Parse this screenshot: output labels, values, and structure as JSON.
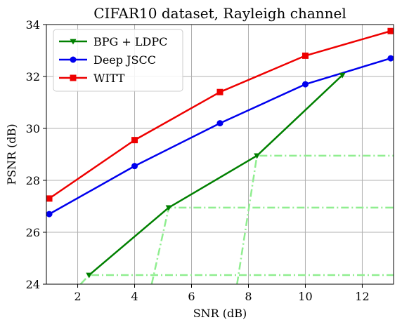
{
  "chart_data": {
    "type": "line",
    "title": "CIFAR10 dataset, Rayleigh channel",
    "xlabel": "SNR (dB)",
    "ylabel": "PSNR (dB)",
    "xlim": [
      0.9,
      13.1
    ],
    "ylim": [
      24,
      34
    ],
    "xticks": [
      2,
      4,
      6,
      8,
      10,
      12
    ],
    "yticks": [
      24,
      26,
      28,
      30,
      32,
      34
    ],
    "grid": true,
    "legend_position": "upper-left",
    "series": [
      {
        "name": "BPG + LDPC",
        "color": "#008000",
        "marker": "triangle-down",
        "x": [
          2.4,
          5.2,
          8.3,
          11.3
        ],
        "y": [
          24.35,
          26.95,
          28.95,
          32.05
        ]
      },
      {
        "name": "Deep JSCC",
        "color": "#0000ee",
        "marker": "circle",
        "x": [
          1,
          4,
          7,
          10,
          13
        ],
        "y": [
          26.7,
          28.55,
          30.2,
          31.7,
          32.7
        ]
      },
      {
        "name": "WITT",
        "color": "#ee0000",
        "marker": "square",
        "x": [
          1,
          4,
          7,
          10,
          13
        ],
        "y": [
          27.3,
          29.55,
          31.4,
          32.8,
          33.75
        ]
      }
    ],
    "reference_lines": {
      "color": "#90ee90",
      "style": "dash-dot",
      "segments": [
        [
          [
            2.1,
            24.0
          ],
          [
            2.4,
            24.35
          ],
          [
            13.1,
            24.35
          ]
        ],
        [
          [
            4.6,
            24.0
          ],
          [
            5.2,
            26.95
          ],
          [
            13.1,
            26.95
          ]
        ],
        [
          [
            7.6,
            24.0
          ],
          [
            8.3,
            28.95
          ],
          [
            13.1,
            28.95
          ]
        ]
      ]
    }
  }
}
